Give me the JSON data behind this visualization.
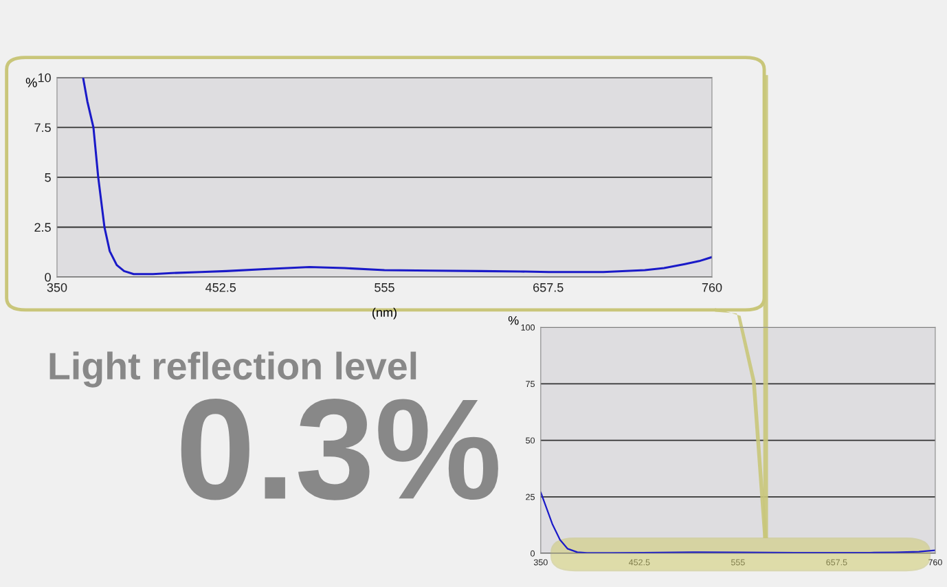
{
  "chart_data": [
    {
      "type": "line",
      "xlabel": "(nm)",
      "ylabel": "%",
      "xlim": [
        350,
        760
      ],
      "ylim": [
        0,
        10
      ],
      "xticks": [
        350,
        452.5,
        555,
        657.5,
        760
      ],
      "yticks": [
        0,
        2.5,
        5,
        7.5,
        10
      ],
      "grid": "y",
      "annotations": [
        "Light reflection level",
        "0.3%"
      ],
      "series": [
        {
          "color": "#1a1ac8",
          "x": [
            366.3,
            369,
            372.8,
            375.8,
            379.7,
            383,
            387.4,
            392,
            398,
            410,
            422,
            440,
            456,
            480,
            508,
            530,
            555,
            585,
            615,
            640,
            658,
            692,
            718,
            730,
            743,
            752,
            760
          ],
          "values": [
            10,
            8.8,
            7.5,
            5,
            2.5,
            1.3,
            0.6,
            0.3,
            0.15,
            0.15,
            0.2,
            0.25,
            0.3,
            0.4,
            0.5,
            0.45,
            0.35,
            0.32,
            0.3,
            0.28,
            0.25,
            0.25,
            0.35,
            0.45,
            0.65,
            0.8,
            1.0
          ]
        }
      ]
    },
    {
      "type": "line",
      "ylabel": "%",
      "xlim": [
        350,
        760
      ],
      "ylim": [
        0,
        100
      ],
      "xticks": [
        350,
        452.5,
        555,
        657.5,
        760
      ],
      "yticks": [
        0,
        25,
        50,
        75,
        100
      ],
      "grid": "y",
      "series": [
        {
          "color": "#1a1ac8",
          "x": [
            350,
            356,
            362,
            370,
            378,
            388,
            398,
            422,
            456,
            508,
            555,
            615,
            658,
            692,
            718,
            743,
            760
          ],
          "values": [
            27,
            20,
            13,
            6,
            2,
            0.5,
            0.2,
            0.2,
            0.3,
            0.5,
            0.4,
            0.3,
            0.3,
            0.3,
            0.4,
            0.7,
            1.3
          ]
        }
      ]
    }
  ]
}
